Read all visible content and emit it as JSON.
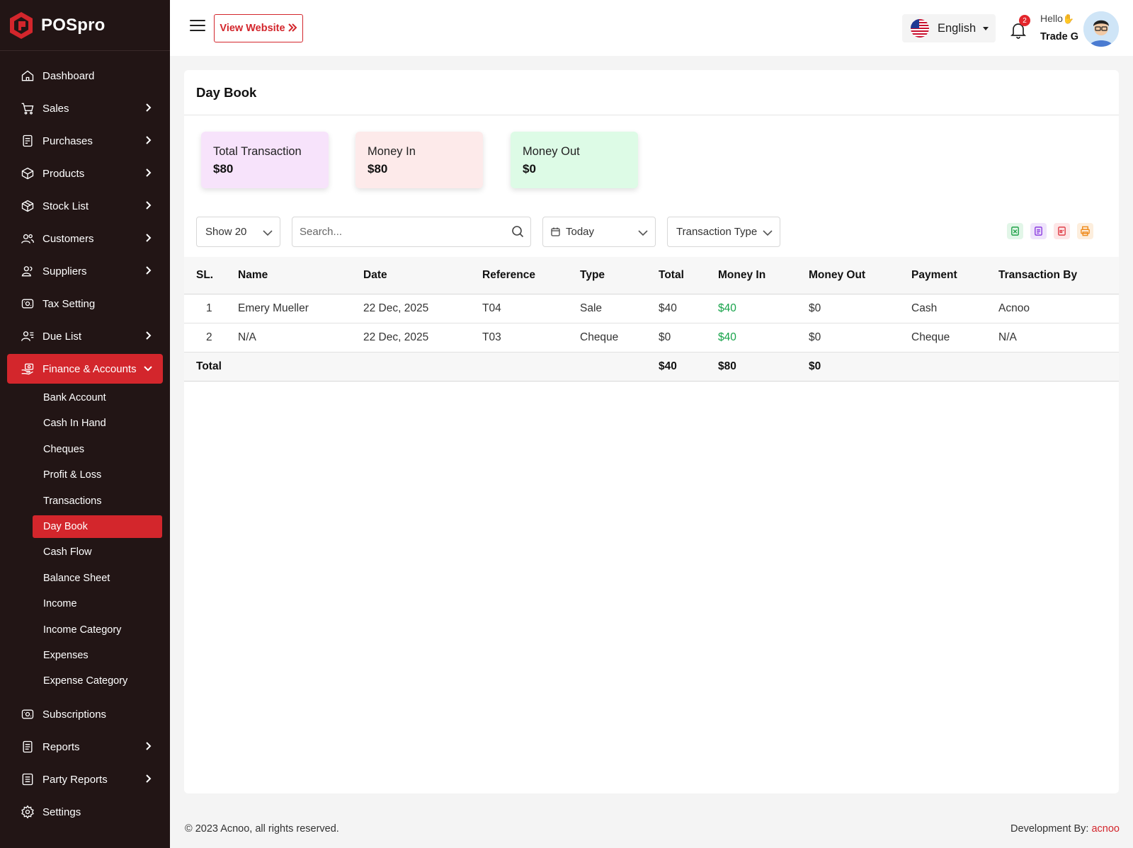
{
  "brand": {
    "name": "POSpro"
  },
  "sidebar": {
    "items": [
      {
        "label": "Dashboard",
        "icon": "home-icon",
        "has_children": false
      },
      {
        "label": "Sales",
        "icon": "cart-icon",
        "has_children": true
      },
      {
        "label": "Purchases",
        "icon": "receipt-icon",
        "has_children": true
      },
      {
        "label": "Products",
        "icon": "box-icon",
        "has_children": true
      },
      {
        "label": "Stock List",
        "icon": "package-icon",
        "has_children": true
      },
      {
        "label": "Customers",
        "icon": "users-icon",
        "has_children": true
      },
      {
        "label": "Suppliers",
        "icon": "user-group-icon",
        "has_children": true
      },
      {
        "label": "Tax Setting",
        "icon": "tax-icon",
        "has_children": false
      },
      {
        "label": "Due List",
        "icon": "user-list-icon",
        "has_children": true
      },
      {
        "label": "Finance & Accounts",
        "icon": "money-hand-icon",
        "has_children": true,
        "active": true
      }
    ],
    "finance_sub": [
      {
        "label": "Bank Account"
      },
      {
        "label": "Cash In Hand"
      },
      {
        "label": "Cheques"
      },
      {
        "label": "Profit & Loss"
      },
      {
        "label": "Transactions"
      },
      {
        "label": "Day Book",
        "active": true
      },
      {
        "label": "Cash Flow"
      },
      {
        "label": "Balance Sheet"
      },
      {
        "label": "Income"
      },
      {
        "label": "Income Category"
      },
      {
        "label": "Expenses"
      },
      {
        "label": "Expense Category"
      }
    ],
    "bottom_items": [
      {
        "label": "Subscriptions",
        "icon": "subscription-icon",
        "has_children": false
      },
      {
        "label": "Reports",
        "icon": "report-icon",
        "has_children": true
      },
      {
        "label": "Party Reports",
        "icon": "party-report-icon",
        "has_children": true
      },
      {
        "label": "Settings",
        "icon": "gear-icon",
        "has_children": false
      }
    ]
  },
  "topbar": {
    "view_website": "View Website",
    "language": "English",
    "notification_count": "2",
    "greeting": "Hello",
    "user_name": "Trade G"
  },
  "page": {
    "title": "Day Book"
  },
  "stats": [
    {
      "label": "Total Transaction",
      "value": "$80",
      "bg": "#f7e3fb"
    },
    {
      "label": "Money In",
      "value": "$80",
      "bg": "#fdeaea"
    },
    {
      "label": "Money Out",
      "value": "$0",
      "bg": "#ddfbe6"
    }
  ],
  "filters": {
    "show": "Show 20",
    "search_placeholder": "Search...",
    "date": "Today",
    "transaction_type": "Transaction Type"
  },
  "export_buttons": [
    {
      "name": "excel-export-icon",
      "color": "#22a34a",
      "bg": "#e2f6e8"
    },
    {
      "name": "csv-export-icon",
      "color": "#8b3ce0",
      "bg": "#efe4fb"
    },
    {
      "name": "pdf-export-icon",
      "color": "#e0414a",
      "bg": "#fde6e7"
    },
    {
      "name": "print-icon",
      "color": "#ef8a1a",
      "bg": "#fdeedd"
    }
  ],
  "table": {
    "columns": [
      "SL.",
      "Name",
      "Date",
      "Reference",
      "Type",
      "Total",
      "Money In",
      "Money Out",
      "Payment",
      "Transaction By"
    ],
    "rows": [
      [
        "1",
        "Emery Mueller",
        "22 Dec, 2025",
        "T04",
        "Sale",
        "$40",
        "$40",
        "$0",
        "Cash",
        "Acnoo"
      ],
      [
        "2",
        "N/A",
        "22 Dec, 2025",
        "T03",
        "Cheque",
        "$0",
        "$40",
        "$0",
        "Cheque",
        "N/A"
      ]
    ],
    "total": {
      "label": "Total",
      "total": "$40",
      "money_in": "$80",
      "money_out": "$0"
    }
  },
  "footer": {
    "copyright": "© 2023 Acnoo, all rights reserved.",
    "dev_label": "Development By:",
    "dev_link": "acnoo"
  }
}
